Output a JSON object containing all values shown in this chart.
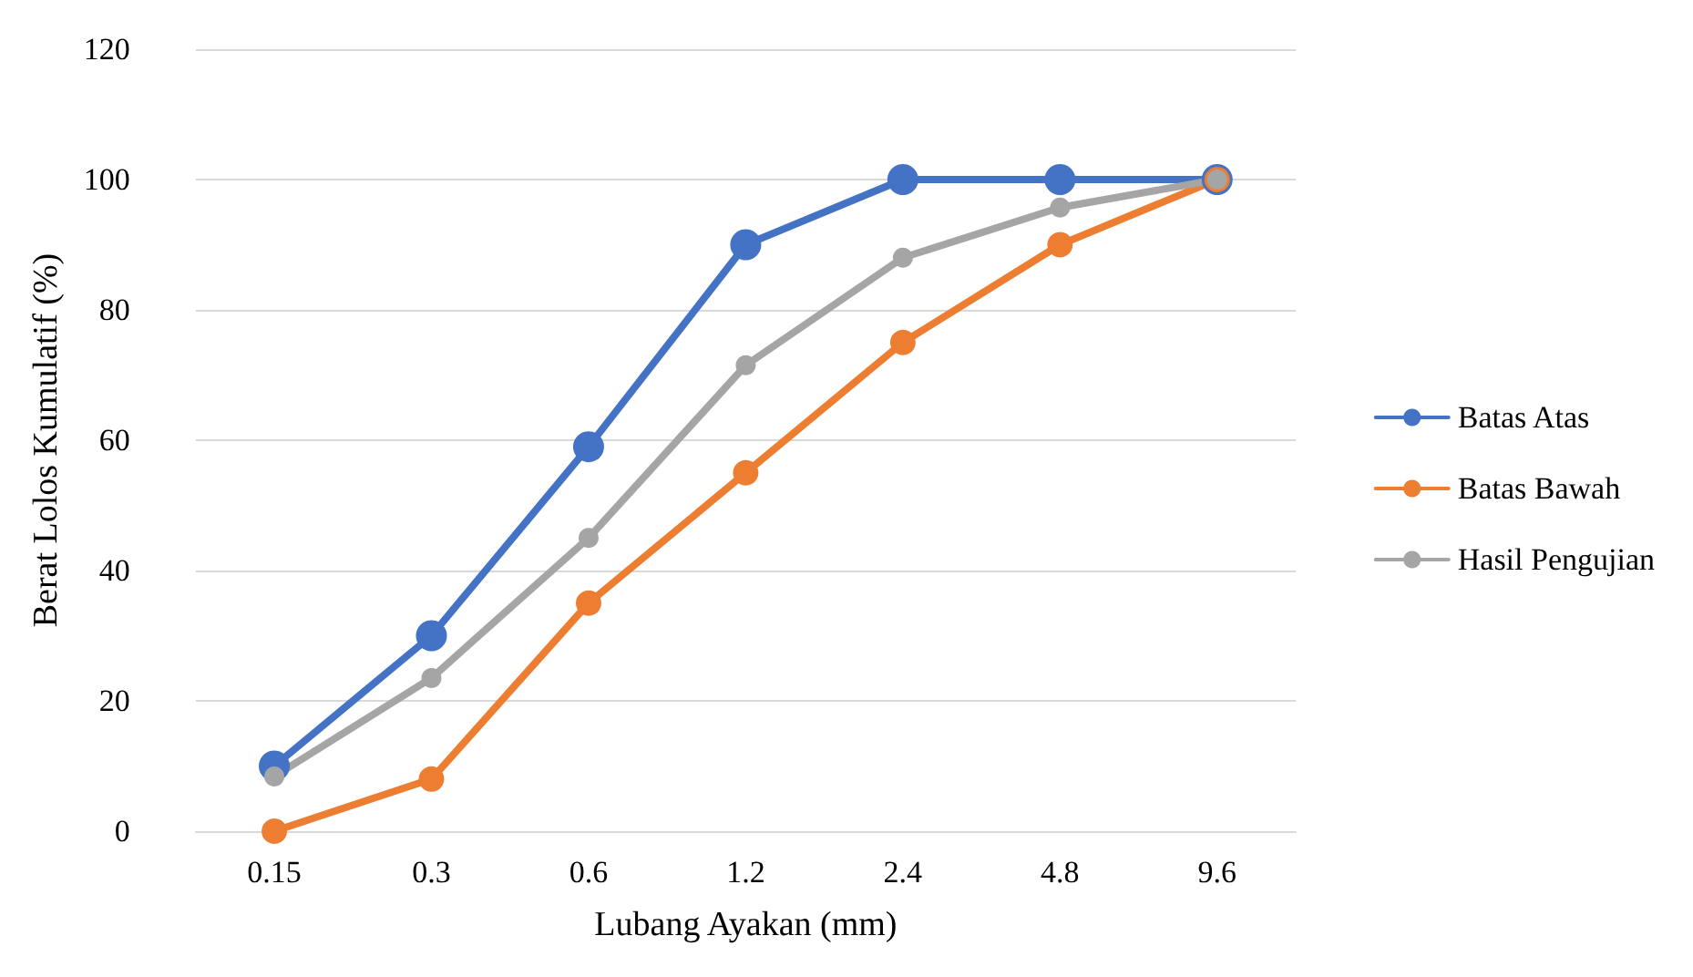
{
  "chart_data": {
    "type": "line",
    "xlabel": "Lubang Ayakan (mm)",
    "ylabel": "Berat Lolos Kumulatif (%)",
    "categories": [
      "0.15",
      "0.3",
      "0.6",
      "1.2",
      "2.4",
      "4.8",
      "9.6"
    ],
    "series": [
      {
        "name": "Batas Atas",
        "color": "#4472c4",
        "values": [
          10,
          30,
          59,
          90,
          100,
          100,
          100
        ]
      },
      {
        "name": "Batas Bawah",
        "color": "#ed7d31",
        "values": [
          0,
          8,
          35,
          55,
          75,
          90,
          100
        ]
      },
      {
        "name": "Hasil Pengujian",
        "color": "#a5a5a5",
        "values": [
          8.4,
          23.5,
          45,
          71.5,
          88,
          95.7,
          100
        ]
      }
    ],
    "ylim": [
      0,
      120
    ],
    "yticks": [
      0,
      20,
      40,
      60,
      80,
      100,
      120
    ],
    "grid": "y",
    "legend": "right",
    "marker": "circle",
    "line_style": "solid"
  }
}
